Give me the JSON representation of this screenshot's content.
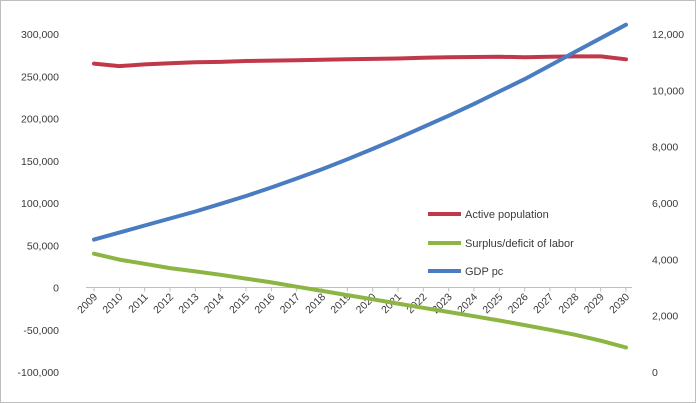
{
  "chart_data": {
    "type": "line",
    "x": [
      "2009",
      "2010",
      "2011",
      "2012",
      "2013",
      "2014",
      "2015",
      "2016",
      "2017",
      "2018",
      "2019",
      "2020",
      "2021",
      "2022",
      "2023",
      "2024",
      "2025",
      "2026",
      "2027",
      "2028",
      "2029",
      "2030"
    ],
    "series": [
      {
        "name": "Active population",
        "axis": "left",
        "color": "#c0394b",
        "values": [
          265000,
          262000,
          264000,
          265500,
          266500,
          267000,
          268000,
          268500,
          269000,
          269500,
          270000,
          270500,
          271000,
          272000,
          272500,
          272800,
          273000,
          272500,
          273000,
          273500,
          273500,
          270000
        ]
      },
      {
        "name": "Surplus/deficit of labor",
        "axis": "left",
        "color": "#8db543",
        "values": [
          40000,
          33000,
          28000,
          23000,
          19000,
          15000,
          10500,
          6000,
          1000,
          -4000,
          -9000,
          -14000,
          -19000,
          -24000,
          -29000,
          -34000,
          -39000,
          -44500,
          -50000,
          -56000,
          -63000,
          -71000
        ]
      },
      {
        "name": "GDP pc",
        "axis": "right",
        "color": "#4a7cc2",
        "values": [
          4700,
          4950,
          5200,
          5450,
          5700,
          5970,
          6250,
          6550,
          6870,
          7200,
          7550,
          7920,
          8300,
          8700,
          9100,
          9520,
          9960,
          10400,
          10880,
          11370,
          11850,
          12330
        ]
      }
    ],
    "y_left": {
      "ylim": [
        -100000,
        300000
      ],
      "ticks": [
        "300,000",
        "250,000",
        "200,000",
        "150,000",
        "100,000",
        "50,000",
        "0",
        "-50,000",
        "-100,000"
      ],
      "tick_values": [
        300000,
        250000,
        200000,
        150000,
        100000,
        50000,
        0,
        -50000,
        -100000
      ]
    },
    "y_right": {
      "ylim": [
        0,
        12000
      ],
      "ticks": [
        "12,000",
        "10,000",
        "8,000",
        "6,000",
        "4,000",
        "2,000",
        "0"
      ],
      "tick_values": [
        12000,
        10000,
        8000,
        6000,
        4000,
        2000,
        0
      ]
    },
    "legend": {
      "placement": "center-right",
      "labels": [
        "Active population",
        "Surplus/deficit of labor",
        "GDP pc"
      ]
    },
    "grid": false,
    "title": "",
    "xlabel": "",
    "ylabel": ""
  }
}
